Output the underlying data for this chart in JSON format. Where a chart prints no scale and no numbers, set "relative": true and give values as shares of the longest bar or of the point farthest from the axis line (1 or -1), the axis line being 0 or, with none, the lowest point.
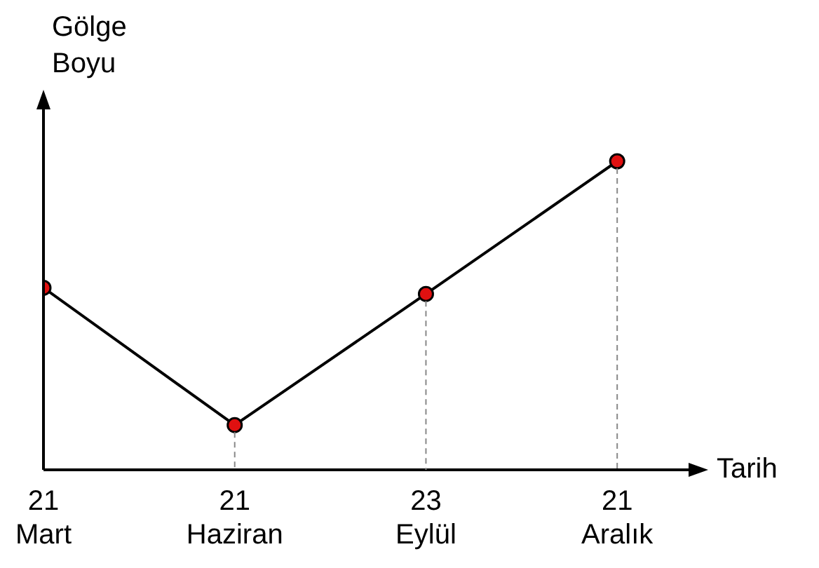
{
  "chart_data": {
    "type": "line",
    "relative": true,
    "xlabel": "Tarih",
    "ylabel": "Gölge Boyu",
    "categories": [
      "21 Mart",
      "21 Haziran",
      "23 Eylül",
      "21 Aralık"
    ],
    "series": [
      {
        "color": "#000000",
        "values": [
          0.59,
          0.145,
          0.57,
          1
        ]
      }
    ],
    "marker": "circle",
    "grid": "x",
    "legend": false
  }
}
